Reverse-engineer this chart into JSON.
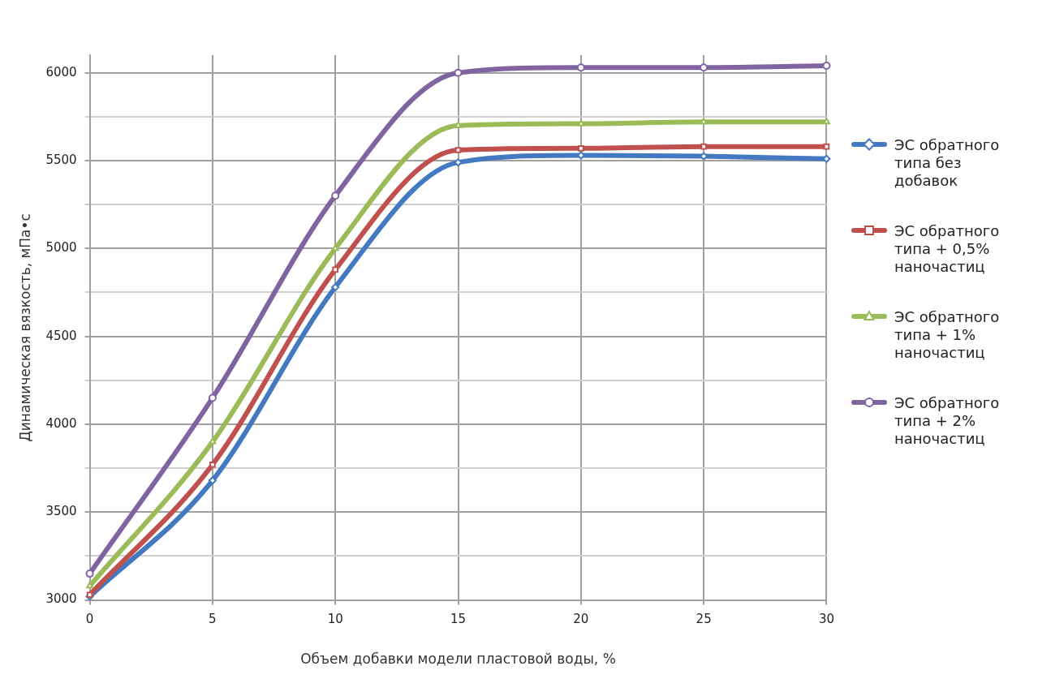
{
  "chart_data": {
    "type": "line",
    "xlabel": "Объем добавки модели пластовой воды, %",
    "ylabel": "Динамическая вязкость, мПа•с",
    "x": [
      0,
      5,
      10,
      15,
      20,
      25,
      30
    ],
    "xlim": [
      0,
      30
    ],
    "xticks": [
      0,
      5,
      10,
      15,
      20,
      25,
      30
    ],
    "ylim": [
      3000,
      6100
    ],
    "yticks": [
      3000,
      {
        "value": 3250,
        "label": null
      },
      3500,
      {
        "value": 3750,
        "label": null
      },
      4000,
      {
        "value": 4250,
        "label": null
      },
      4500,
      {
        "value": 4750,
        "label": null
      },
      5000,
      {
        "value": 5250,
        "label": null
      },
      5500,
      {
        "value": 5750,
        "label": null
      },
      6000
    ],
    "grid": true,
    "legend": "right",
    "line_style": "solid",
    "series": [
      {
        "name": "ЭС обратного типа без добавок",
        "color": "#4279c0",
        "marker": "diamond",
        "values": [
          3020,
          3680,
          4780,
          5490,
          5530,
          5525,
          5510
        ]
      },
      {
        "name": "ЭС обратного типа + 0,5% наночастиц",
        "color": "#c0504d",
        "marker": "square",
        "values": [
          3030,
          3770,
          4880,
          5560,
          5570,
          5580,
          5580
        ]
      },
      {
        "name": "ЭС обратного типа + 1% наночастиц",
        "color": "#9bbb59",
        "marker": "triangle",
        "values": [
          3080,
          3900,
          5000,
          5700,
          5710,
          5720,
          5720
        ]
      },
      {
        "name": "ЭС обратного типа + 2% наночастиц",
        "color": "#8064a2",
        "marker": "circle",
        "values": [
          3150,
          4150,
          5300,
          6000,
          6030,
          6030,
          6040
        ]
      }
    ]
  }
}
